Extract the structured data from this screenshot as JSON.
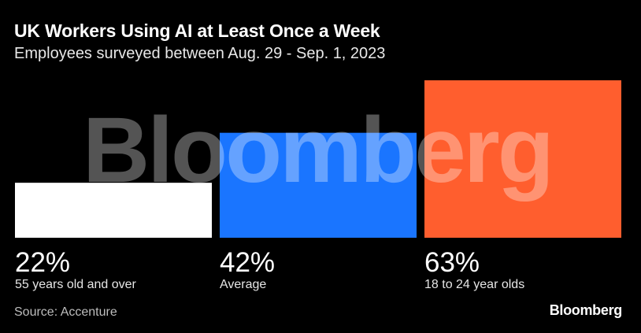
{
  "title": "UK Workers Using AI at Least Once a Week",
  "subtitle": "Employees surveyed between Aug. 29 - Sep. 1, 2023",
  "source": "Source: Accenture",
  "logo": "Bloomberg",
  "watermark": "Bloomberg",
  "chart_data": {
    "type": "bar",
    "categories": [
      "55 years old and over",
      "Average",
      "18 to 24 year olds"
    ],
    "values": [
      22,
      42,
      63
    ],
    "value_labels": [
      "22%",
      "42%",
      "63%"
    ],
    "unit": "%",
    "colors": [
      "#ffffff",
      "#1a75ff",
      "#ff5e2e"
    ],
    "ylim": [
      0,
      63
    ],
    "grid": false,
    "legend": "none"
  }
}
